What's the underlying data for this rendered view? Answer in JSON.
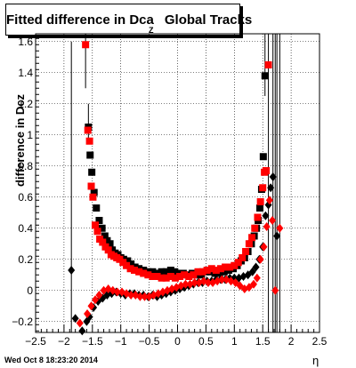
{
  "chart_data": {
    "type": "scatter",
    "title": "Fitted difference in Dca",
    "title_subscript": "Z",
    "title_suffix": "Global Tracks",
    "ylabel": "difference in Dcz",
    "xlabel": "η",
    "xlim": [
      -2.5,
      2.5
    ],
    "ylim": [
      -0.27,
      1.65
    ],
    "x_ticks": [
      -2.5,
      -2,
      -1.5,
      -1,
      -0.5,
      0,
      0.5,
      1,
      1.5,
      2,
      2.5
    ],
    "x_tick_labels": [
      "−2.5",
      "−2",
      "−1.5",
      "−1",
      "−0.5",
      "0",
      "0.5",
      "1",
      "1.5",
      "2",
      "2.5"
    ],
    "y_ticks": [
      -0.2,
      0,
      0.2,
      0.4,
      0.6,
      0.8,
      1,
      1.2,
      1.4,
      1.6
    ],
    "y_tick_labels": [
      "−0.2",
      "0",
      "0.2",
      "0.4",
      "0.6",
      "0.8",
      "1",
      "1.2",
      "1.4",
      "1.6"
    ],
    "grid": true,
    "series": [
      {
        "color": "#000000",
        "marker": "square",
        "points": [
          [
            -1.57,
            1.05
          ],
          [
            -1.54,
            0.87
          ],
          [
            -1.51,
            0.76
          ],
          [
            -1.47,
            0.63
          ],
          [
            -1.43,
            0.53
          ],
          [
            -1.38,
            0.45
          ],
          [
            -1.33,
            0.4
          ],
          [
            -1.28,
            0.35
          ],
          [
            -1.24,
            0.32
          ],
          [
            -1.19,
            0.3
          ],
          [
            -1.15,
            0.26
          ],
          [
            -1.1,
            0.24
          ],
          [
            -1.05,
            0.23
          ],
          [
            -1.0,
            0.21
          ],
          [
            -0.95,
            0.2
          ],
          [
            -0.88,
            0.19
          ],
          [
            -0.82,
            0.17
          ],
          [
            -0.75,
            0.15
          ],
          [
            -0.68,
            0.14
          ],
          [
            -0.6,
            0.13
          ],
          [
            -0.52,
            0.12
          ],
          [
            -0.44,
            0.12
          ],
          [
            -0.36,
            0.11
          ],
          [
            -0.28,
            0.12
          ],
          [
            -0.2,
            0.12
          ],
          [
            -0.12,
            0.13
          ],
          [
            -0.05,
            0.12
          ],
          [
            0.02,
            0.11
          ],
          [
            0.1,
            0.11
          ],
          [
            0.18,
            0.1
          ],
          [
            0.26,
            0.11
          ],
          [
            0.34,
            0.1
          ],
          [
            0.42,
            0.1
          ],
          [
            0.5,
            0.12
          ],
          [
            0.58,
            0.12
          ],
          [
            0.66,
            0.11
          ],
          [
            0.74,
            0.11
          ],
          [
            0.82,
            0.12
          ],
          [
            0.9,
            0.13
          ],
          [
            0.98,
            0.14
          ],
          [
            1.05,
            0.16
          ],
          [
            1.12,
            0.19
          ],
          [
            1.18,
            0.21
          ],
          [
            1.24,
            0.25
          ],
          [
            1.3,
            0.3
          ],
          [
            1.35,
            0.35
          ],
          [
            1.39,
            0.4
          ],
          [
            1.42,
            0.45
          ],
          [
            1.45,
            0.53
          ],
          [
            1.48,
            0.65
          ],
          [
            1.51,
            0.86
          ],
          [
            1.54,
            1.38
          ]
        ]
      },
      {
        "color": "#ff0000",
        "marker": "square",
        "points": [
          [
            -1.62,
            1.58
          ],
          [
            -1.58,
            1.03
          ],
          [
            -1.55,
            0.96
          ],
          [
            -1.52,
            0.67
          ],
          [
            -1.49,
            0.6
          ],
          [
            -1.45,
            0.42
          ],
          [
            -1.41,
            0.38
          ],
          [
            -1.37,
            0.33
          ],
          [
            -1.32,
            0.31
          ],
          [
            -1.27,
            0.28
          ],
          [
            -1.22,
            0.26
          ],
          [
            -1.17,
            0.23
          ],
          [
            -1.12,
            0.22
          ],
          [
            -1.07,
            0.21
          ],
          [
            -1.02,
            0.2
          ],
          [
            -0.96,
            0.18
          ],
          [
            -0.9,
            0.16
          ],
          [
            -0.83,
            0.14
          ],
          [
            -0.76,
            0.13
          ],
          [
            -0.68,
            0.12
          ],
          [
            -0.6,
            0.11
          ],
          [
            -0.52,
            0.1
          ],
          [
            -0.44,
            0.09
          ],
          [
            -0.36,
            0.09
          ],
          [
            -0.28,
            0.08
          ],
          [
            -0.2,
            0.08
          ],
          [
            -0.12,
            0.09
          ],
          [
            -0.04,
            0.08
          ],
          [
            0.04,
            0.09
          ],
          [
            0.12,
            0.1
          ],
          [
            0.2,
            0.09
          ],
          [
            0.28,
            0.1
          ],
          [
            0.36,
            0.12
          ],
          [
            0.44,
            0.12
          ],
          [
            0.52,
            0.13
          ],
          [
            0.6,
            0.14
          ],
          [
            0.68,
            0.13
          ],
          [
            0.76,
            0.14
          ],
          [
            0.84,
            0.15
          ],
          [
            0.92,
            0.15
          ],
          [
            1.0,
            0.16
          ],
          [
            1.07,
            0.18
          ],
          [
            1.14,
            0.21
          ],
          [
            1.2,
            0.25
          ],
          [
            1.26,
            0.3
          ],
          [
            1.31,
            0.34
          ],
          [
            1.36,
            0.4
          ],
          [
            1.41,
            0.47
          ],
          [
            1.46,
            0.57
          ],
          [
            1.5,
            0.66
          ],
          [
            1.53,
            0.76
          ],
          [
            1.56,
            0.77
          ],
          [
            1.6,
            1.45
          ]
        ]
      },
      {
        "color": "#000000",
        "marker": "diamond",
        "points": [
          [
            -1.87,
            0.13
          ],
          [
            -1.8,
            -0.18
          ],
          [
            -1.68,
            -0.26
          ],
          [
            -1.6,
            -0.2
          ],
          [
            -1.55,
            -0.17
          ],
          [
            -1.48,
            -0.11
          ],
          [
            -1.4,
            -0.07
          ],
          [
            -1.32,
            -0.05
          ],
          [
            -1.24,
            -0.03
          ],
          [
            -1.16,
            -0.02
          ],
          [
            -1.08,
            -0.01
          ],
          [
            -1.0,
            -0.02
          ],
          [
            -0.92,
            -0.03
          ],
          [
            -0.84,
            -0.02
          ],
          [
            -0.76,
            -0.02
          ],
          [
            -0.68,
            -0.03
          ],
          [
            -0.6,
            -0.03
          ],
          [
            -0.52,
            -0.04
          ],
          [
            -0.44,
            -0.03
          ],
          [
            -0.36,
            -0.04
          ],
          [
            -0.28,
            -0.03
          ],
          [
            -0.2,
            -0.02
          ],
          [
            -0.12,
            -0.01
          ],
          [
            -0.04,
            0.0
          ],
          [
            0.04,
            0.01
          ],
          [
            0.12,
            0.02
          ],
          [
            0.2,
            0.03
          ],
          [
            0.28,
            0.04
          ],
          [
            0.36,
            0.05
          ],
          [
            0.44,
            0.05
          ],
          [
            0.52,
            0.06
          ],
          [
            0.6,
            0.06
          ],
          [
            0.68,
            0.07
          ],
          [
            0.76,
            0.07
          ],
          [
            0.84,
            0.07
          ],
          [
            0.92,
            0.08
          ],
          [
            1.0,
            0.08
          ],
          [
            1.08,
            0.08
          ],
          [
            1.16,
            0.09
          ],
          [
            1.24,
            0.1
          ],
          [
            1.32,
            0.12
          ],
          [
            1.38,
            0.15
          ],
          [
            1.44,
            0.2
          ],
          [
            1.5,
            0.28
          ],
          [
            1.55,
            0.48
          ],
          [
            1.6,
            0.55
          ],
          [
            1.64,
            0.66
          ],
          [
            1.68,
            0.73
          ],
          [
            1.75,
            0.35
          ]
        ]
      },
      {
        "color": "#ff0000",
        "marker": "diamond",
        "points": [
          [
            -1.72,
            -0.21
          ],
          [
            -1.59,
            -0.15
          ],
          [
            -1.52,
            -0.1
          ],
          [
            -1.45,
            -0.06
          ],
          [
            -1.38,
            -0.03
          ],
          [
            -1.3,
            0.0
          ],
          [
            -1.22,
            0.01
          ],
          [
            -1.14,
            0.0
          ],
          [
            -1.06,
            -0.01
          ],
          [
            -0.98,
            -0.01
          ],
          [
            -0.9,
            -0.02
          ],
          [
            -0.82,
            -0.03
          ],
          [
            -0.74,
            -0.03
          ],
          [
            -0.66,
            -0.04
          ],
          [
            -0.58,
            -0.04
          ],
          [
            -0.5,
            -0.04
          ],
          [
            -0.42,
            -0.03
          ],
          [
            -0.34,
            -0.02
          ],
          [
            -0.26,
            -0.01
          ],
          [
            -0.18,
            0.0
          ],
          [
            -0.1,
            0.01
          ],
          [
            -0.02,
            0.02
          ],
          [
            0.06,
            0.03
          ],
          [
            0.14,
            0.04
          ],
          [
            0.22,
            0.04
          ],
          [
            0.3,
            0.05
          ],
          [
            0.38,
            0.05
          ],
          [
            0.46,
            0.06
          ],
          [
            0.54,
            0.05
          ],
          [
            0.62,
            0.05
          ],
          [
            0.7,
            0.06
          ],
          [
            0.78,
            0.07
          ],
          [
            0.86,
            0.07
          ],
          [
            0.94,
            0.06
          ],
          [
            1.02,
            0.05
          ],
          [
            1.1,
            0.03
          ],
          [
            1.18,
            0.01
          ],
          [
            1.26,
            0.02
          ],
          [
            1.34,
            0.04
          ],
          [
            1.4,
            0.08
          ],
          [
            1.46,
            0.2
          ],
          [
            1.52,
            0.28
          ],
          [
            1.57,
            0.41
          ],
          [
            1.62,
            0.58
          ],
          [
            1.67,
            0.45
          ],
          [
            1.72,
            0.0
          ],
          [
            1.8,
            0.4
          ]
        ]
      }
    ],
    "error_bars": [
      {
        "x": -1.87,
        "y0": 0.13,
        "y1": 1.6
      },
      {
        "x": -1.87,
        "y0": -0.27,
        "y1": 0.13
      },
      {
        "x": -1.62,
        "y0": 1.3,
        "y1": 1.65
      },
      {
        "x": -1.57,
        "y0": 0.95,
        "y1": 1.2
      },
      {
        "x": 1.54,
        "y0": 1.25,
        "y1": 1.65
      },
      {
        "x": 1.6,
        "y0": -0.27,
        "y1": 1.65
      },
      {
        "x": 1.68,
        "y0": -0.27,
        "y1": 1.65
      },
      {
        "x": 1.72,
        "y0": -0.27,
        "y1": 1.65
      },
      {
        "x": 1.75,
        "y0": -0.27,
        "y1": 1.65
      },
      {
        "x": 1.8,
        "y0": -0.27,
        "y1": 1.65
      }
    ]
  },
  "timestamp": "Wed Oct  8 18:23:20 2014"
}
